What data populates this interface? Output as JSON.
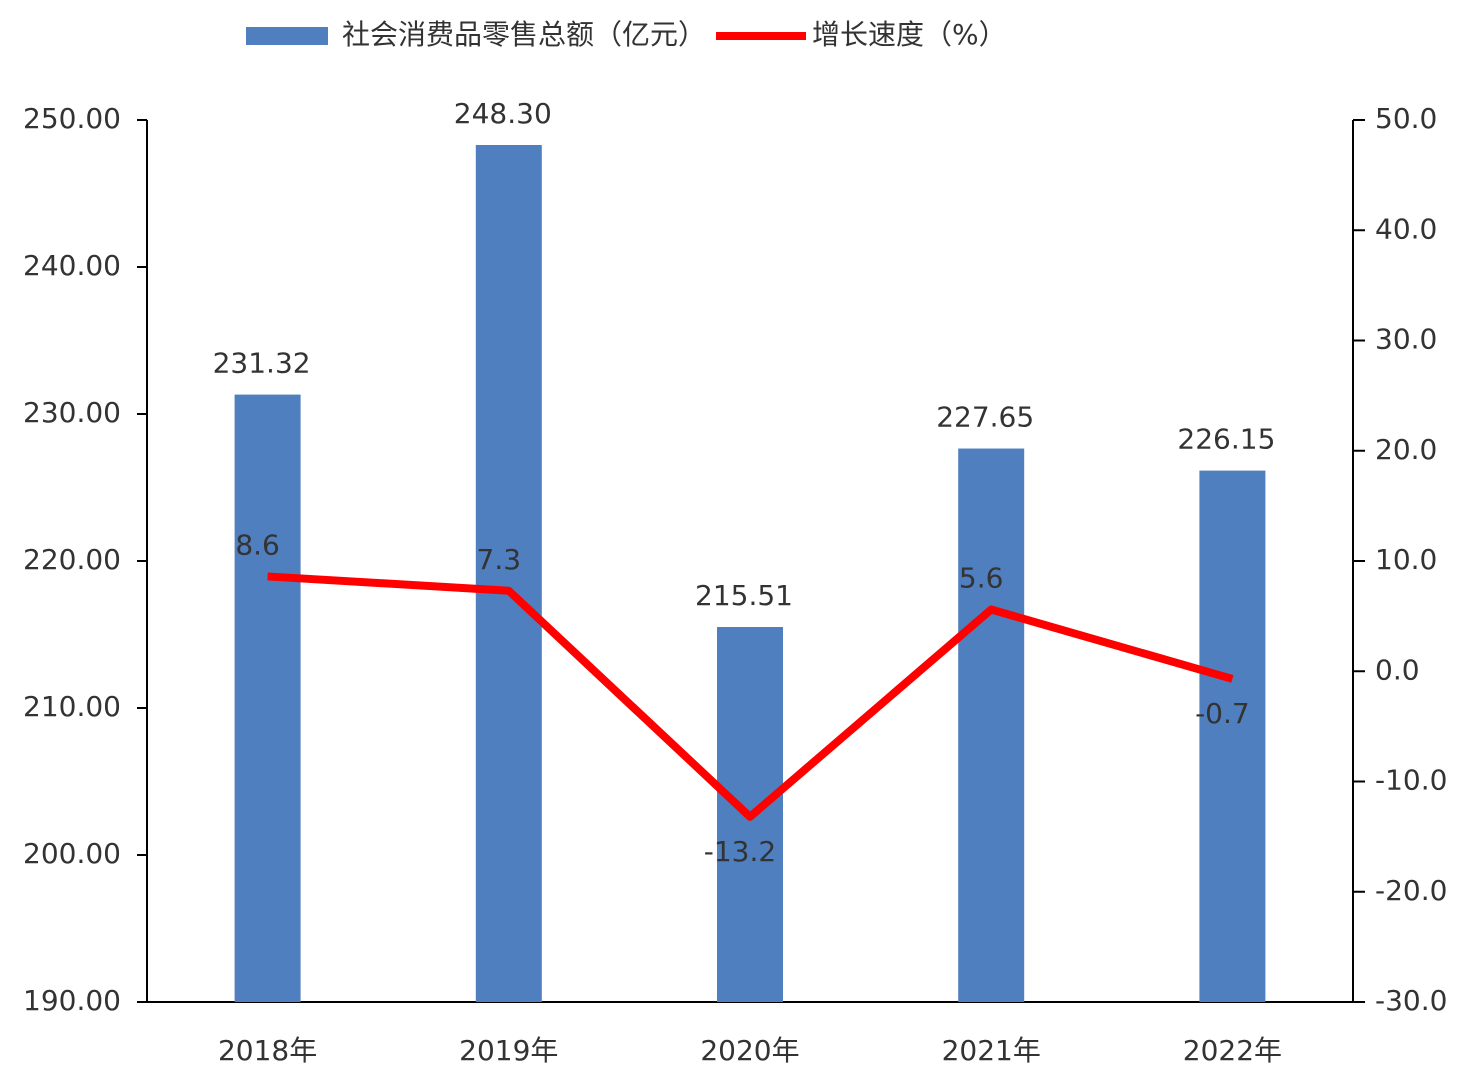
{
  "chart_data": {
    "type": "bar",
    "categories": [
      "2018年",
      "2019年",
      "2020年",
      "2021年",
      "2022年"
    ],
    "series": [
      {
        "name": "社会消费品零售总额（亿元）",
        "type": "bar",
        "color": "#4f7fbf",
        "axis": "y",
        "values": [
          231.32,
          248.3,
          215.51,
          227.65,
          226.15
        ],
        "value_labels": [
          "231.32",
          "248.30",
          "215.51",
          "227.65",
          "226.15"
        ]
      },
      {
        "name": "增长速度（%）",
        "type": "line",
        "color": "#ff0000",
        "axis": "y2",
        "values": [
          8.6,
          7.3,
          -13.2,
          5.6,
          -0.7
        ]
      }
    ],
    "ylim": [
      190,
      250
    ],
    "yticks": [
      {
        "value": 190,
        "label": "190.00"
      },
      {
        "value": 200,
        "label": "200.00"
      },
      {
        "value": 210,
        "label": "210.00"
      },
      {
        "value": 220,
        "label": "220.00"
      },
      {
        "value": 230,
        "label": "230.00"
      },
      {
        "value": 240,
        "label": "240.00"
      },
      {
        "value": 250,
        "label": "250.00"
      }
    ],
    "y2lim": [
      -30,
      50
    ],
    "y2ticks": [
      {
        "value": -30,
        "label": "-30.0"
      },
      {
        "value": -20,
        "label": "-20.0"
      },
      {
        "value": -10,
        "label": "-10.0"
      },
      {
        "value": 0,
        "label": "0.0"
      },
      {
        "value": 10,
        "label": "10.0"
      },
      {
        "value": 20,
        "label": "20.0"
      },
      {
        "value": 30,
        "label": "30.0"
      },
      {
        "value": 40,
        "label": "40.0"
      },
      {
        "value": 50,
        "label": "50.0"
      }
    ],
    "grid": false,
    "legend": "top"
  }
}
